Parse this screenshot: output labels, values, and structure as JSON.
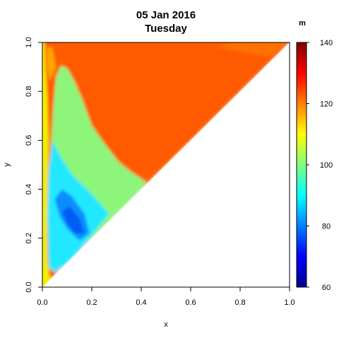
{
  "chart_data": {
    "type": "heatmap",
    "title": "05 Jan 2016",
    "subtitle": "Tuesday",
    "xlabel": "x",
    "ylabel": "y",
    "xlim": [
      0,
      1
    ],
    "ylim": [
      0,
      1
    ],
    "x_ticks": [
      "0.0",
      "0.2",
      "0.4",
      "0.6",
      "0.8",
      "1.0"
    ],
    "y_ticks": [
      "0.0",
      "0.2",
      "0.4",
      "0.6",
      "0.8",
      "1.0"
    ],
    "domain": "upper-left triangle (y >= x)",
    "colorbar": {
      "unit": "m",
      "range": [
        60,
        140
      ],
      "ticks": [
        "60",
        "80",
        "100",
        "120",
        "140"
      ],
      "palette": [
        "#00008F",
        "#0000FF",
        "#0080FF",
        "#00FFFF",
        "#80FF80",
        "#FFFF00",
        "#FF8000",
        "#FF0000",
        "#800000"
      ]
    },
    "regions": [
      {
        "name": "upper-right band",
        "approx_value": 121,
        "color": "#FF5A00"
      },
      {
        "name": "interior lobe",
        "approx_value": 101,
        "color": "#8CF57A"
      },
      {
        "name": "left-lower zone",
        "approx_value": 94,
        "color": "#20E8FF"
      },
      {
        "name": "deep pocket",
        "approx_value": 86,
        "color": "#0A8CFF"
      },
      {
        "name": "left edge strip",
        "approx_value": 111,
        "color": "#F2F000"
      }
    ]
  }
}
